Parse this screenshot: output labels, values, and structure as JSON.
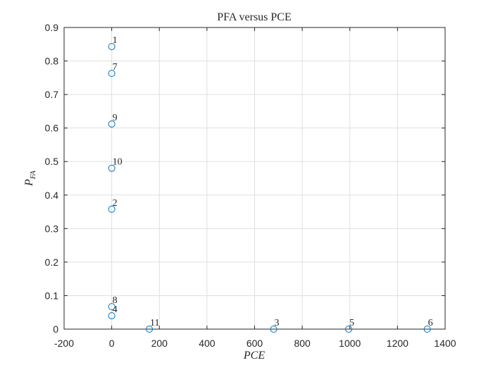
{
  "chart_data": {
    "type": "scatter",
    "title": "PFA versus PCE",
    "xlabel": "PCE",
    "ylabel_main": "P",
    "ylabel_sub": "FA",
    "xlim": [
      -200,
      1400
    ],
    "ylim": [
      0,
      0.9
    ],
    "xticks": [
      "-200",
      "0",
      "200",
      "400",
      "600",
      "800",
      "1000",
      "1200",
      "1400"
    ],
    "yticks": [
      "0",
      "0.1",
      "0.2",
      "0.3",
      "0.4",
      "0.5",
      "0.6",
      "0.7",
      "0.8",
      "0.9"
    ],
    "grid": true,
    "marker_color": "#0072bd",
    "points": [
      {
        "label": "1",
        "x": 0,
        "y": 0.843
      },
      {
        "label": "7",
        "x": 0,
        "y": 0.763
      },
      {
        "label": "9",
        "x": 0,
        "y": 0.612
      },
      {
        "label": "10",
        "x": 0,
        "y": 0.48
      },
      {
        "label": "2",
        "x": 0,
        "y": 0.358
      },
      {
        "label": "8",
        "x": 0,
        "y": 0.067
      },
      {
        "label": "4",
        "x": 0,
        "y": 0.04
      },
      {
        "label": "11",
        "x": 158,
        "y": 0
      },
      {
        "label": "3",
        "x": 680,
        "y": 0
      },
      {
        "label": "5",
        "x": 995,
        "y": 0
      },
      {
        "label": "6",
        "x": 1325,
        "y": 0
      }
    ]
  }
}
